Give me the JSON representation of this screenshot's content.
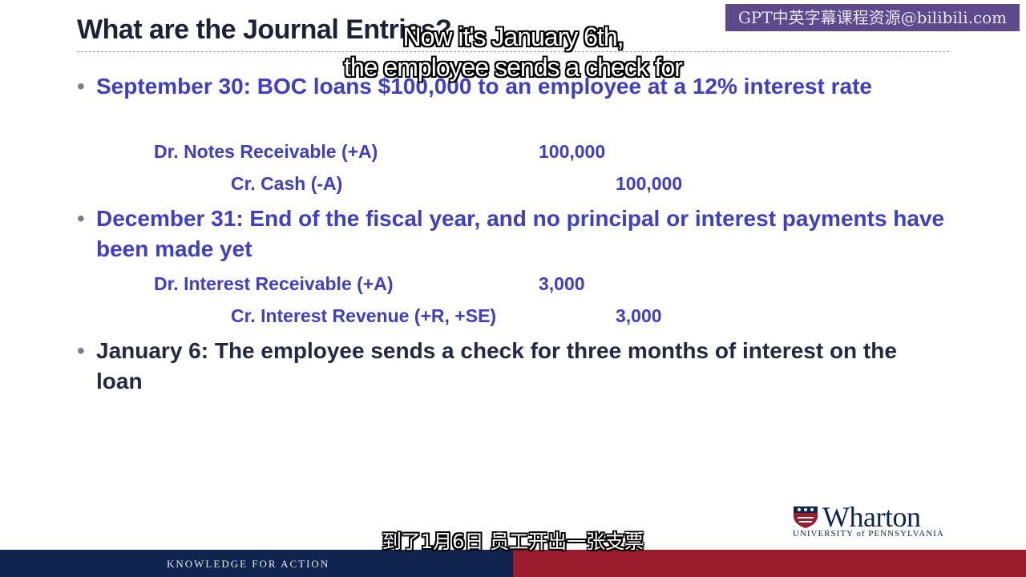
{
  "slide": {
    "title": "What are the Journal Entries?",
    "watermark": "GPT中英字幕课程资源@bilibili.com",
    "bullets": [
      {
        "text": "September 30: BOC loans $100,000 to an employee at a 12% interest rate",
        "entries": [
          {
            "account": "Dr. Notes Receivable (+A)",
            "amount": "100,000"
          },
          {
            "account": "Cr. Cash (-A)",
            "amount": "100,000"
          }
        ]
      },
      {
        "text": "December 31: End of the fiscal year, and no principal or interest payments have been made yet",
        "entries": [
          {
            "account": "Dr. Interest Receivable (+A)",
            "amount": "3,000"
          },
          {
            "account": "Cr. Interest Revenue (+R, +SE)",
            "amount": "3,000"
          }
        ]
      },
      {
        "text": "January 6: The employee sends a check for three months of interest on the loan"
      }
    ]
  },
  "subtitles": {
    "en_line1": "Now it's January 6th,",
    "en_line2": "the employee sends a check for",
    "cn": "到了1月6日 员工开出一张支票"
  },
  "logo": {
    "name": "Wharton",
    "university": "UNIVERSITY of PENNSYLVANIA"
  },
  "footer": {
    "tagline": "KNOWLEDGE FOR ACTION"
  },
  "colors": {
    "navy": "#0f2550",
    "red": "#9b1c2c",
    "body_blue": "#3f3fc6",
    "watermark_purple": "#5d4a8c"
  }
}
